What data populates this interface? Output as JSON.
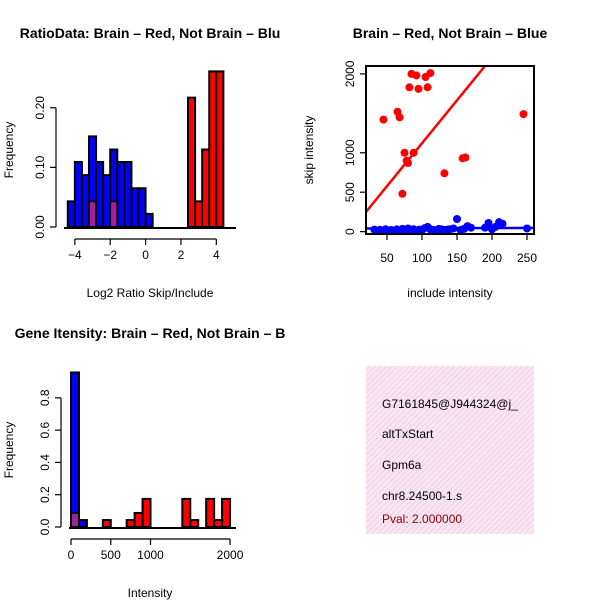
{
  "colors": {
    "red": "#ff0000",
    "blue": "#0000ff",
    "overlap": "#a020a0",
    "panel_bg": "#f7dcee",
    "pval": "#8b0000"
  },
  "chart_data": [
    {
      "type": "bar",
      "title": "RatioData: Brain – Red, Not Brain – Blu",
      "xlabel": "Log2 Ratio Skip/Include",
      "ylabel": "Frequency",
      "xlim": [
        -4.5,
        5.0
      ],
      "ylim": [
        0,
        0.26
      ],
      "xticks": [
        -4,
        -2,
        0,
        2,
        4
      ],
      "yticks": [
        0.0,
        0.1,
        0.2
      ],
      "ytick_labels": [
        "0.00",
        "0.10",
        "0.20"
      ],
      "bin_width": 0.4,
      "series": [
        {
          "name": "Not Brain",
          "color": "#0000ff",
          "bins": [
            [
              -4.4,
              0.043
            ],
            [
              -4.0,
              0.109
            ],
            [
              -3.6,
              0.087
            ],
            [
              -3.2,
              0.152
            ],
            [
              -2.8,
              0.109
            ],
            [
              -2.4,
              0.087
            ],
            [
              -2.0,
              0.13
            ],
            [
              -1.6,
              0.109
            ],
            [
              -1.2,
              0.109
            ],
            [
              -0.8,
              0.065
            ],
            [
              -0.4,
              0.065
            ],
            [
              0.0,
              0.022
            ]
          ]
        },
        {
          "name": "Brain",
          "color": "#ff0000",
          "bins": [
            [
              -3.2,
              0.043
            ],
            [
              -2.0,
              0.043
            ],
            [
              2.4,
              0.217
            ],
            [
              2.8,
              0.043
            ],
            [
              3.2,
              0.13
            ],
            [
              3.6,
              0.261
            ],
            [
              4.0,
              0.261
            ]
          ]
        }
      ],
      "overlap_bins": [
        [
          -3.2,
          0.043
        ],
        [
          -2.0,
          0.043
        ]
      ]
    },
    {
      "type": "scatter",
      "title": "Brain – Red, Not Brain – Blue",
      "xlabel": "include intensity",
      "ylabel": "skip intensity",
      "xlim": [
        20,
        260
      ],
      "ylim": [
        -30,
        2100
      ],
      "xticks": [
        50,
        100,
        150,
        200,
        250
      ],
      "yticks": [
        0,
        500,
        1000,
        2000
      ],
      "series": [
        {
          "name": "Brain",
          "color": "#ff0000",
          "points": [
            [
              45,
              1420
            ],
            [
              65,
              1520
            ],
            [
              68,
              1450
            ],
            [
              72,
              480
            ],
            [
              75,
              1000
            ],
            [
              78,
              900
            ],
            [
              80,
              870
            ],
            [
              82,
              1830
            ],
            [
              85,
              2000
            ],
            [
              88,
              1000
            ],
            [
              92,
              1980
            ],
            [
              95,
              1810
            ],
            [
              105,
              1960
            ],
            [
              108,
              1830
            ],
            [
              112,
              2010
            ],
            [
              132,
              740
            ],
            [
              158,
              930
            ],
            [
              162,
              940
            ],
            [
              245,
              1490
            ]
          ],
          "fit": [
            [
              20,
              250
            ],
            [
              190,
              2100
            ]
          ]
        },
        {
          "name": "Not Brain",
          "color": "#0000ff",
          "points": [
            [
              32,
              25
            ],
            [
              36,
              10
            ],
            [
              40,
              22
            ],
            [
              44,
              8
            ],
            [
              48,
              30
            ],
            [
              52,
              15
            ],
            [
              56,
              20
            ],
            [
              60,
              12
            ],
            [
              64,
              28
            ],
            [
              68,
              10
            ],
            [
              72,
              35
            ],
            [
              76,
              18
            ],
            [
              80,
              40
            ],
            [
              84,
              22
            ],
            [
              88,
              30
            ],
            [
              92,
              15
            ],
            [
              96,
              25
            ],
            [
              100,
              20
            ],
            [
              104,
              45
            ],
            [
              108,
              60
            ],
            [
              112,
              30
            ],
            [
              116,
              22
            ],
            [
              120,
              18
            ],
            [
              124,
              35
            ],
            [
              128,
              28
            ],
            [
              132,
              20
            ],
            [
              136,
              25
            ],
            [
              140,
              30
            ],
            [
              145,
              40
            ],
            [
              150,
              160
            ],
            [
              155,
              20
            ],
            [
              160,
              35
            ],
            [
              165,
              70
            ],
            [
              170,
              50
            ],
            [
              190,
              50
            ],
            [
              195,
              110
            ],
            [
              200,
              30
            ],
            [
              205,
              60
            ],
            [
              210,
              120
            ],
            [
              215,
              100
            ],
            [
              250,
              40
            ]
          ],
          "fit": [
            [
              20,
              40
            ],
            [
              260,
              48
            ]
          ]
        }
      ]
    },
    {
      "type": "bar",
      "title": "Gene Itensity: Brain – Red, Not Brain – B",
      "xlabel": "Intensity",
      "ylabel": "Frequency",
      "xlim": [
        0,
        2050
      ],
      "ylim": [
        0,
        0.96
      ],
      "xticks": [
        0,
        500,
        1000,
        2000
      ],
      "yticks": [
        0.0,
        0.2,
        0.4,
        0.6,
        0.8
      ],
      "ytick_labels": [
        "0.0",
        "0.2",
        "0.4",
        "0.6",
        "0.8"
      ],
      "bin_width": 100,
      "series": [
        {
          "name": "Not Brain",
          "color": "#0000ff",
          "bins": [
            [
              0,
              0.957
            ],
            [
              100,
              0.043
            ]
          ]
        },
        {
          "name": "Brain",
          "color": "#ff0000",
          "bins": [
            [
              0,
              0.087
            ],
            [
              400,
              0.043
            ],
            [
              700,
              0.043
            ],
            [
              800,
              0.087
            ],
            [
              900,
              0.174
            ],
            [
              1400,
              0.174
            ],
            [
              1500,
              0.043
            ],
            [
              1700,
              0.174
            ],
            [
              1800,
              0.043
            ],
            [
              1900,
              0.174
            ]
          ]
        }
      ],
      "overlap_bins": [
        [
          0,
          0.087
        ]
      ]
    }
  ],
  "info_panel": {
    "id": "G7161845@J944324@j_",
    "event": "altTxStart",
    "gene": "Gpm6a",
    "location": "chr8.24500-1.s",
    "pval": "Pval: 2.000000"
  }
}
